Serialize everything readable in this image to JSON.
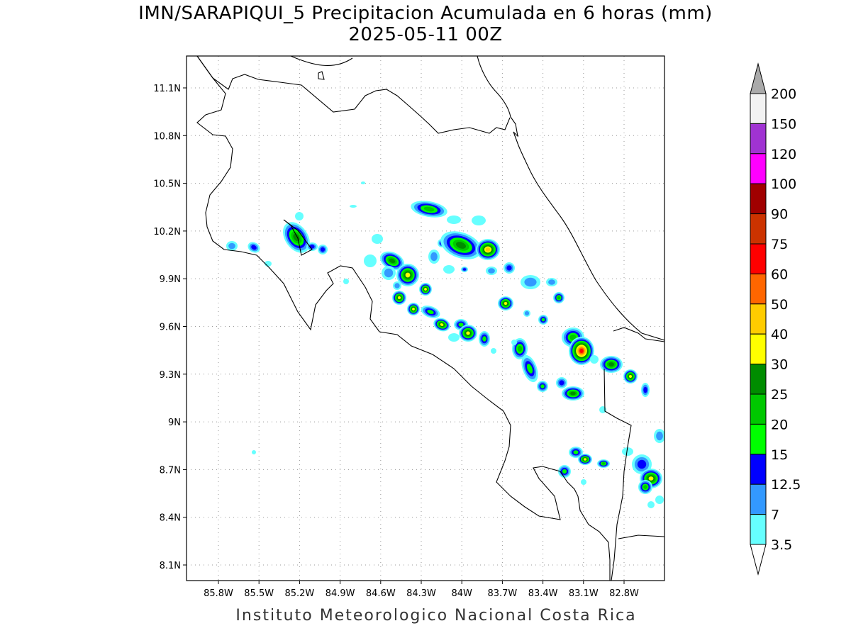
{
  "title": {
    "line1": "IMN/SARAPIQUI_5 Precipitacion Acumulada en 6 horas (mm)",
    "line2": "2025-05-11 00Z"
  },
  "footer": "Instituto Meteorologico Nacional Costa Rica",
  "map": {
    "lon_range": [
      -86.0,
      -83.0
    ],
    "lat_range": [
      8.0,
      11.3
    ],
    "x_ticks": [
      "85.8W",
      "85.5W",
      "85.2W",
      "84.9W",
      "84.6W",
      "84.3W",
      "84W",
      "83.7W",
      "83.4W",
      "83.1W",
      "82.8W"
    ],
    "y_ticks": [
      "11.1N",
      "10.8N",
      "10.5N",
      "10.2N",
      "9.9N",
      "9.6N",
      "9.3N",
      "9N",
      "8.7N",
      "8.4N",
      "8.1N"
    ],
    "grid": "dotted"
  },
  "colorbar": {
    "levels": [
      "200",
      "150",
      "120",
      "100",
      "90",
      "75",
      "60",
      "50",
      "40",
      "30",
      "25",
      "20",
      "15",
      "12.5",
      "7",
      "3.5"
    ],
    "colors": [
      "#aaaaaa",
      "#f2f2f2",
      "#a033d2",
      "#ff00ff",
      "#a00000",
      "#cc3300",
      "#ff0000",
      "#ff6600",
      "#ffcc00",
      "#ffff00",
      "#008c00",
      "#00c800",
      "#00ff00",
      "#0000ff",
      "#3399ff",
      "#66ffff"
    ]
  }
}
